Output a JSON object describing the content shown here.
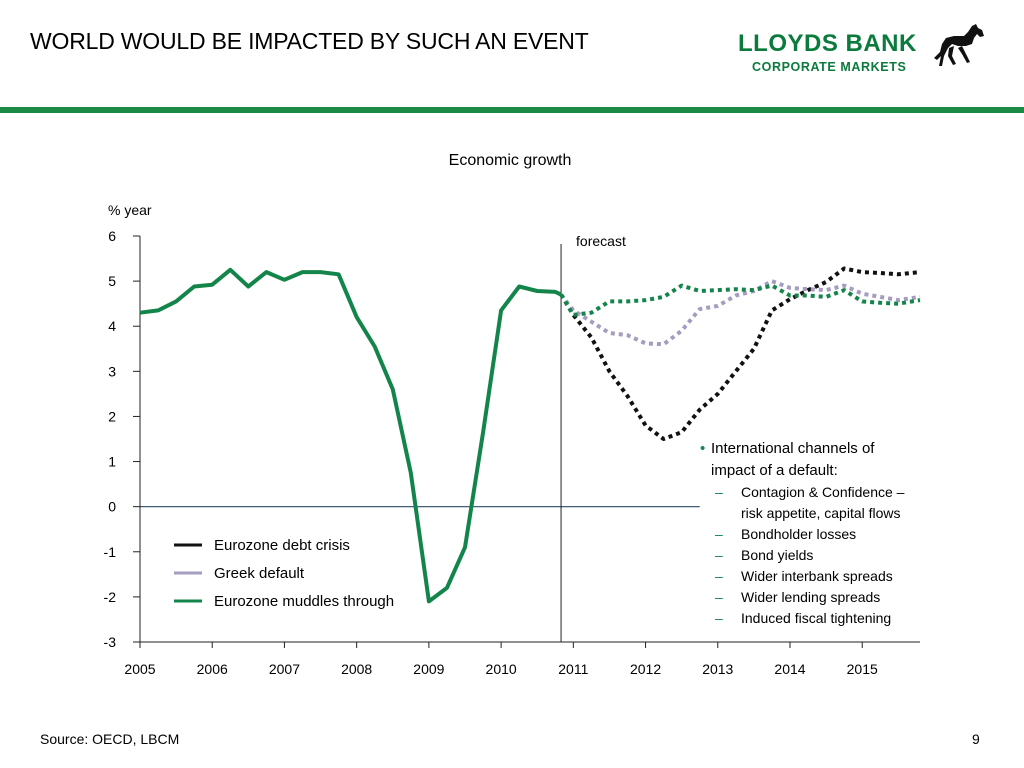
{
  "slide": {
    "title": "WORLD WOULD BE IMPACTED BY SUCH AN EVENT",
    "source": "Source: OECD, LBCM",
    "page_number": "9"
  },
  "logo": {
    "name": "LLOYDS BANK",
    "subtitle": "CORPORATE MARKETS",
    "icon": "black-horse-icon",
    "color": "#0b7a3d"
  },
  "theme": {
    "rule_color": "#1a8a45"
  },
  "chart_data": {
    "type": "line",
    "title": "Economic growth",
    "ylabel": "% year",
    "xlabel": "",
    "ylim": [
      -3,
      6
    ],
    "xlim": [
      2005,
      2015.8
    ],
    "y_ticks": [
      "6",
      "5",
      "4",
      "3",
      "2",
      "1",
      "0",
      "-1",
      "-2",
      "-3"
    ],
    "x_ticks": [
      "2005",
      "2006",
      "2007",
      "2008",
      "2009",
      "2010",
      "2011",
      "2012",
      "2013",
      "2014",
      "2015"
    ],
    "forecast_x": 2010.83,
    "forecast_label": "forecast",
    "zero_line_end_x": 2012.75,
    "history": {
      "color": "#14854a",
      "x": [
        2005.0,
        2005.25,
        2005.5,
        2005.75,
        2006.0,
        2006.25,
        2006.5,
        2006.75,
        2007.0,
        2007.25,
        2007.5,
        2007.75,
        2008.0,
        2008.25,
        2008.5,
        2008.75,
        2009.0,
        2009.25,
        2009.5,
        2009.75,
        2010.0,
        2010.25,
        2010.5,
        2010.75,
        2010.83
      ],
      "y": [
        4.3,
        4.35,
        4.55,
        4.88,
        4.92,
        5.25,
        4.88,
        5.2,
        5.03,
        5.2,
        5.2,
        5.15,
        4.2,
        3.55,
        2.6,
        0.75,
        -2.1,
        -1.8,
        -0.9,
        1.65,
        4.35,
        4.88,
        4.78,
        4.76,
        4.7
      ]
    },
    "series": [
      {
        "name": "Eurozone debt crisis",
        "color": "#111111",
        "x": [
          2010.83,
          2011.0,
          2011.25,
          2011.5,
          2011.75,
          2012.0,
          2012.25,
          2012.5,
          2012.75,
          2013.0,
          2013.25,
          2013.5,
          2013.75,
          2014.0,
          2014.25,
          2014.5,
          2014.75,
          2015.0,
          2015.25,
          2015.5,
          2015.8
        ],
        "y": [
          4.7,
          4.25,
          3.75,
          3.0,
          2.45,
          1.8,
          1.5,
          1.65,
          2.15,
          2.5,
          3.0,
          3.5,
          4.35,
          4.6,
          4.8,
          4.98,
          5.28,
          5.2,
          5.18,
          5.15,
          5.2
        ]
      },
      {
        "name": "Greek default",
        "color": "#a59cbf",
        "x": [
          2010.83,
          2011.0,
          2011.25,
          2011.5,
          2011.75,
          2012.0,
          2012.25,
          2012.5,
          2012.75,
          2013.0,
          2013.25,
          2013.5,
          2013.75,
          2014.0,
          2014.25,
          2014.5,
          2014.75,
          2015.0,
          2015.25,
          2015.5,
          2015.8
        ],
        "y": [
          4.7,
          4.35,
          4.1,
          3.85,
          3.8,
          3.62,
          3.6,
          3.9,
          4.38,
          4.45,
          4.68,
          4.78,
          5.0,
          4.85,
          4.82,
          4.8,
          4.9,
          4.72,
          4.65,
          4.58,
          4.65
        ]
      },
      {
        "name": "Eurozone muddles through",
        "color": "#14854a",
        "x": [
          2010.83,
          2011.0,
          2011.25,
          2011.5,
          2011.75,
          2012.0,
          2012.25,
          2012.5,
          2012.75,
          2013.0,
          2013.25,
          2013.5,
          2013.75,
          2014.0,
          2014.25,
          2014.5,
          2014.75,
          2015.0,
          2015.25,
          2015.5,
          2015.8
        ],
        "y": [
          4.7,
          4.25,
          4.3,
          4.55,
          4.55,
          4.58,
          4.65,
          4.9,
          4.78,
          4.8,
          4.82,
          4.8,
          4.9,
          4.68,
          4.68,
          4.65,
          4.8,
          4.55,
          4.52,
          4.5,
          4.58
        ]
      }
    ],
    "legend_position": "bottom-left",
    "annotation": {
      "heading": "International channels of impact of a default:",
      "heading_lines": [
        "International channels of",
        "impact of a default:"
      ],
      "items": [
        [
          "Contagion & Confidence –",
          "risk appetite, capital flows"
        ],
        [
          "Bondholder losses"
        ],
        [
          "Bond yields"
        ],
        [
          "Wider interbank spreads"
        ],
        [
          "Wider lending spreads"
        ],
        [
          "Induced fiscal tightening"
        ]
      ],
      "bullet_color": "#14854a"
    },
    "grid": false
  }
}
